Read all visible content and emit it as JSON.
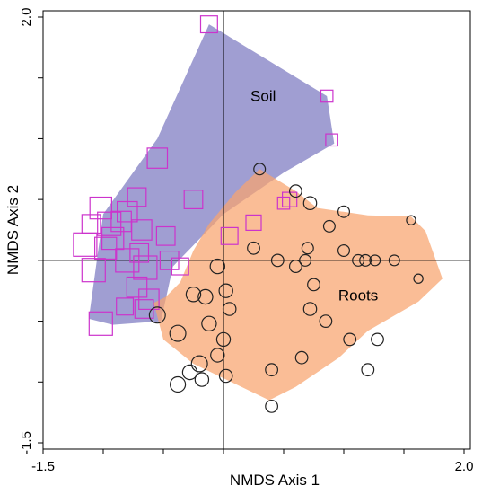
{
  "chart_data": {
    "type": "scatter",
    "title": "",
    "xlabel": "NMDS Axis 1",
    "ylabel": "NMDS Axis 2",
    "xlim": [
      -1.5,
      2.0
    ],
    "ylim": [
      -1.5,
      2.0
    ],
    "xticks": [
      {
        "value": -1.5,
        "label": "-1.5"
      },
      {
        "value": 2.0,
        "label": "2.0"
      }
    ],
    "yticks": [
      {
        "value": -1.5,
        "label": "-1.5"
      },
      {
        "value": 2.0,
        "label": "2.0"
      }
    ],
    "minor_ticks": [
      -1.0,
      -0.5,
      0.0,
      0.5,
      1.0,
      1.5
    ],
    "reference_lines": {
      "x": 0,
      "y": 0
    },
    "grid": false,
    "hulls": [
      {
        "label": "Soil",
        "color": "#7b78c0",
        "label_pos": [
          0.33,
          1.31
        ],
        "vertices": [
          [
            -0.12,
            1.94
          ],
          [
            0.86,
            1.35
          ],
          [
            0.92,
            0.96
          ],
          [
            0.5,
            0.72
          ],
          [
            0.0,
            0.38
          ],
          [
            -0.42,
            -0.05
          ],
          [
            -0.52,
            -0.5
          ],
          [
            -0.92,
            -0.53
          ],
          [
            -1.12,
            -0.48
          ],
          [
            -1.0,
            0.38
          ],
          [
            -0.55,
            1.0
          ]
        ]
      },
      {
        "label": "Roots",
        "color": "#f8a36e",
        "label_pos": [
          1.12,
          -0.33
        ],
        "vertices": [
          [
            0.3,
            0.75
          ],
          [
            0.6,
            0.57
          ],
          [
            0.78,
            0.43
          ],
          [
            1.2,
            0.37
          ],
          [
            1.56,
            0.36
          ],
          [
            1.68,
            0.24
          ],
          [
            1.82,
            -0.15
          ],
          [
            1.62,
            -0.34
          ],
          [
            1.2,
            -0.58
          ],
          [
            0.96,
            -0.8
          ],
          [
            0.6,
            -1.04
          ],
          [
            0.38,
            -1.15
          ],
          [
            -0.25,
            -0.85
          ],
          [
            -0.5,
            -0.65
          ],
          [
            -0.58,
            -0.35
          ],
          [
            -0.48,
            -0.3
          ],
          [
            -0.36,
            -0.18
          ],
          [
            -0.25,
            0.08
          ],
          [
            -0.12,
            0.3
          ],
          [
            0.1,
            0.56
          ]
        ]
      }
    ],
    "series": [
      {
        "marker": "square",
        "color": "#cc33cc",
        "points": [
          {
            "x": -0.12,
            "y": 1.94,
            "size": 0.6
          },
          {
            "x": 0.86,
            "y": 1.35,
            "size": 0.3
          },
          {
            "x": 0.9,
            "y": 0.99,
            "size": 0.3
          },
          {
            "x": -0.55,
            "y": 0.84,
            "size": 0.8
          },
          {
            "x": -0.25,
            "y": 0.5,
            "size": 0.7
          },
          {
            "x": 0.55,
            "y": 0.5,
            "size": 0.45
          },
          {
            "x": 0.5,
            "y": 0.47,
            "size": 0.3
          },
          {
            "x": 0.25,
            "y": 0.31,
            "size": 0.5
          },
          {
            "x": 0.05,
            "y": 0.2,
            "size": 0.6
          },
          {
            "x": -0.72,
            "y": 0.52,
            "size": 0.7
          },
          {
            "x": -0.8,
            "y": 0.4,
            "size": 0.8
          },
          {
            "x": -1.02,
            "y": 0.43,
            "size": 0.9
          },
          {
            "x": -0.95,
            "y": 0.3,
            "size": 1.0
          },
          {
            "x": -0.85,
            "y": 0.32,
            "size": 0.8
          },
          {
            "x": -0.92,
            "y": 0.18,
            "size": 0.9
          },
          {
            "x": -0.98,
            "y": 0.1,
            "size": 0.9
          },
          {
            "x": -0.68,
            "y": 0.25,
            "size": 0.8
          },
          {
            "x": -0.48,
            "y": 0.2,
            "size": 0.7
          },
          {
            "x": -1.1,
            "y": 0.3,
            "size": 0.7
          },
          {
            "x": -1.15,
            "y": 0.13,
            "size": 1.0
          },
          {
            "x": -0.8,
            "y": 0.0,
            "size": 1.0
          },
          {
            "x": -0.7,
            "y": 0.06,
            "size": 0.7
          },
          {
            "x": -0.65,
            "y": -0.06,
            "size": 1.0
          },
          {
            "x": -0.45,
            "y": 0.0,
            "size": 0.7
          },
          {
            "x": -0.36,
            "y": -0.05,
            "size": 0.6
          },
          {
            "x": -1.08,
            "y": -0.08,
            "size": 1.0
          },
          {
            "x": -0.72,
            "y": -0.22,
            "size": 0.8
          },
          {
            "x": -0.62,
            "y": -0.32,
            "size": 0.8
          },
          {
            "x": -0.66,
            "y": -0.4,
            "size": 0.7
          },
          {
            "x": -1.02,
            "y": -0.52,
            "size": 1.0
          },
          {
            "x": -0.82,
            "y": -0.38,
            "size": 0.6
          }
        ]
      },
      {
        "marker": "circle",
        "color": "#222222",
        "points": [
          {
            "x": 0.3,
            "y": 0.75,
            "size": 0.3
          },
          {
            "x": 0.6,
            "y": 0.57,
            "size": 0.35
          },
          {
            "x": 0.72,
            "y": 0.47,
            "size": 0.4
          },
          {
            "x": 1.0,
            "y": 0.4,
            "size": 0.3
          },
          {
            "x": 1.56,
            "y": 0.33,
            "size": 0.15
          },
          {
            "x": 1.62,
            "y": -0.15,
            "size": 0.15
          },
          {
            "x": 1.42,
            "y": 0.0,
            "size": 0.25
          },
          {
            "x": 0.88,
            "y": 0.28,
            "size": 0.3
          },
          {
            "x": 1.0,
            "y": 0.08,
            "size": 0.3
          },
          {
            "x": 0.7,
            "y": 0.1,
            "size": 0.3
          },
          {
            "x": 1.12,
            "y": 0.0,
            "size": 0.3
          },
          {
            "x": 1.18,
            "y": 0.0,
            "size": 0.3
          },
          {
            "x": 1.26,
            "y": 0.0,
            "size": 0.25
          },
          {
            "x": 0.6,
            "y": -0.05,
            "size": 0.35
          },
          {
            "x": 0.68,
            "y": 0.0,
            "size": 0.3
          },
          {
            "x": 0.45,
            "y": 0.0,
            "size": 0.35
          },
          {
            "x": 0.25,
            "y": 0.1,
            "size": 0.35
          },
          {
            "x": 0.75,
            "y": -0.2,
            "size": 0.35
          },
          {
            "x": 0.72,
            "y": -0.4,
            "size": 0.4
          },
          {
            "x": 0.85,
            "y": -0.5,
            "size": 0.35
          },
          {
            "x": 1.05,
            "y": -0.65,
            "size": 0.35
          },
          {
            "x": 1.28,
            "y": -0.65,
            "size": 0.35
          },
          {
            "x": 0.65,
            "y": -0.8,
            "size": 0.35
          },
          {
            "x": 1.2,
            "y": -0.9,
            "size": 0.35
          },
          {
            "x": 0.4,
            "y": -0.9,
            "size": 0.35
          },
          {
            "x": 0.4,
            "y": -1.2,
            "size": 0.35
          },
          {
            "x": -0.05,
            "y": -0.05,
            "size": 0.5
          },
          {
            "x": -0.25,
            "y": -0.28,
            "size": 0.5
          },
          {
            "x": -0.15,
            "y": -0.3,
            "size": 0.5
          },
          {
            "x": 0.02,
            "y": -0.25,
            "size": 0.45
          },
          {
            "x": -0.55,
            "y": -0.45,
            "size": 0.6
          },
          {
            "x": -0.38,
            "y": -0.6,
            "size": 0.6
          },
          {
            "x": -0.12,
            "y": -0.52,
            "size": 0.5
          },
          {
            "x": 0.0,
            "y": -0.65,
            "size": 0.45
          },
          {
            "x": -0.05,
            "y": -0.78,
            "size": 0.45
          },
          {
            "x": -0.2,
            "y": -0.85,
            "size": 0.6
          },
          {
            "x": -0.28,
            "y": -0.92,
            "size": 0.5
          },
          {
            "x": 0.02,
            "y": -0.95,
            "size": 0.4
          },
          {
            "x": -0.38,
            "y": -1.02,
            "size": 0.55
          },
          {
            "x": -0.18,
            "y": -0.98,
            "size": 0.45
          },
          {
            "x": 0.05,
            "y": -0.4,
            "size": 0.4
          }
        ]
      }
    ]
  }
}
